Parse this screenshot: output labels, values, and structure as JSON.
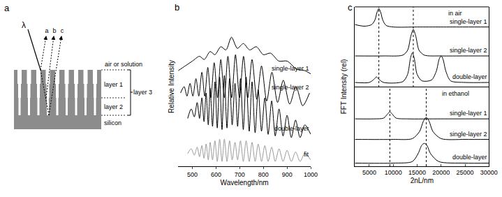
{
  "diagram": {
    "label": "a",
    "incident": "λ",
    "beams": [
      "a",
      "b",
      "c"
    ],
    "medium": "air or solution",
    "layers": [
      "layer 1",
      "layer 2"
    ],
    "total_layer": "layer 3",
    "substrate": "silicon"
  },
  "chart_data": [
    {
      "type": "line",
      "label": "b",
      "xlabel": "Wavelength/nm",
      "ylabel": "Relative Intensity",
      "xlim": [
        440,
        1000
      ],
      "xticks": [
        500,
        600,
        700,
        800,
        900,
        1000
      ],
      "ylim": [
        0,
        10
      ],
      "tick_labels": "x",
      "grid": false,
      "line_style": "solid",
      "series": [
        {
          "name": "single-layer 1",
          "color": "#000000",
          "x": [
            440,
            470,
            500,
            530,
            550,
            575,
            595,
            620,
            642,
            665,
            690,
            715,
            742,
            770,
            800,
            830,
            865,
            900,
            940,
            975,
            1000
          ],
          "values": [
            6.0,
            6.3,
            6.6,
            6.9,
            6.7,
            7.2,
            7.0,
            7.5,
            7.3,
            8.1,
            7.4,
            7.7,
            7.3,
            7.5,
            7.0,
            7.1,
            6.6,
            6.6,
            6.1,
            6.0,
            5.8
          ]
        },
        {
          "name": "single-layer 2",
          "color": "#000000",
          "x": [
            450,
            465,
            477,
            490,
            502,
            515,
            527,
            540,
            552,
            565,
            578,
            592,
            606,
            620,
            635,
            650,
            666,
            682,
            699,
            716,
            734,
            752,
            772,
            792,
            814,
            836,
            860,
            884,
            911,
            938,
            966,
            995
          ],
          "values": [
            4.6,
            5.0,
            4.4,
            5.2,
            4.4,
            5.5,
            4.4,
            5.9,
            4.4,
            6.2,
            4.3,
            6.5,
            4.3,
            6.7,
            4.3,
            6.9,
            4.3,
            7.0,
            4.3,
            6.9,
            4.3,
            6.7,
            4.2,
            6.3,
            4.1,
            5.9,
            4.0,
            5.4,
            3.9,
            5.0,
            3.8,
            4.6
          ]
        },
        {
          "name": "double-layer",
          "color": "#000000",
          "x": [
            480,
            495,
            508,
            520,
            530,
            540,
            549,
            558,
            567,
            575,
            585,
            595,
            605,
            615,
            625,
            635,
            646,
            657,
            668,
            680,
            691,
            703,
            715,
            727,
            740,
            752,
            765,
            778,
            792,
            806,
            820,
            835,
            850,
            866,
            883,
            900,
            918,
            936,
            955,
            975,
            1000
          ],
          "values": [
            3.0,
            3.6,
            3.1,
            4.0,
            3.0,
            4.3,
            2.8,
            4.6,
            2.6,
            4.9,
            2.5,
            5.3,
            2.4,
            5.6,
            2.3,
            5.7,
            2.4,
            5.5,
            2.6,
            5.2,
            2.5,
            5.5,
            2.3,
            5.6,
            2.2,
            5.3,
            2.1,
            4.8,
            2.2,
            4.3,
            2.0,
            4.1,
            1.9,
            3.6,
            1.9,
            3.2,
            1.8,
            2.9,
            1.8,
            2.6,
            2.0
          ]
        },
        {
          "name": "fit",
          "color": "#999999",
          "x": [
            480,
            495,
            508,
            520,
            530,
            540,
            549,
            558,
            567,
            575,
            585,
            595,
            605,
            615,
            625,
            635,
            646,
            657,
            668,
            680,
            691,
            703,
            715,
            727,
            740,
            752,
            765,
            778,
            792,
            806,
            820,
            835,
            850,
            866,
            883,
            900,
            918,
            936,
            955,
            975,
            1000
          ],
          "values": [
            0.8,
            1.1,
            0.7,
            1.2,
            0.6,
            1.3,
            0.5,
            1.4,
            0.4,
            1.5,
            0.4,
            1.6,
            0.3,
            1.7,
            0.3,
            1.7,
            0.3,
            1.6,
            0.4,
            1.5,
            0.4,
            1.6,
            0.3,
            1.6,
            0.3,
            1.5,
            0.3,
            1.4,
            0.3,
            1.3,
            0.3,
            1.2,
            0.3,
            1.1,
            0.3,
            1.0,
            0.3,
            0.9,
            0.3,
            0.8,
            0.4
          ]
        }
      ]
    },
    {
      "type": "line",
      "label": "c",
      "xlabel": "2nL/nm",
      "ylabel": "FFT Intensity (rel)",
      "xlim": [
        2000,
        30000
      ],
      "xticks": [
        5000,
        10000,
        15000,
        20000,
        25000,
        30000
      ],
      "ylim": [
        0,
        10
      ],
      "tick_labels": "x",
      "grid": false,
      "line_style": "solid",
      "subplots": [
        {
          "title": "in air",
          "vlines": [
            7000,
            14200
          ],
          "series": [
            {
              "name": "single-layer 1",
              "color": "#000000",
              "x": [
                2000,
                4000,
                5500,
                6200,
                6600,
                7000,
                7400,
                7800,
                8500,
                10000,
                15000,
                20000,
                25000,
                30000
              ],
              "values": [
                7.8,
                7.6,
                7.8,
                8.4,
                9.3,
                9.8,
                9.3,
                8.4,
                7.7,
                7.5,
                7.5,
                7.5,
                7.5,
                7.5
              ]
            },
            {
              "name": "single-layer 2",
              "color": "#000000",
              "x": [
                2000,
                8000,
                12000,
                13000,
                13700,
                14200,
                14700,
                15400,
                16500,
                20000,
                25000,
                30000
              ],
              "values": [
                3.9,
                3.9,
                4.0,
                4.6,
                6.4,
                7.2,
                6.4,
                4.6,
                4.0,
                3.9,
                3.9,
                3.9
              ]
            },
            {
              "name": "double-layer",
              "color": "#000000",
              "x": [
                2000,
                5000,
                6000,
                6500,
                7000,
                8000,
                12000,
                13000,
                13600,
                14000,
                14400,
                15000,
                16000,
                18000,
                19000,
                19600,
                20000,
                20400,
                21000,
                22000,
                25000,
                30000
              ],
              "values": [
                0.6,
                0.6,
                1.0,
                1.3,
                1.0,
                0.6,
                0.7,
                1.6,
                3.6,
                4.3,
                3.6,
                1.6,
                0.8,
                0.9,
                2.0,
                3.5,
                3.9,
                3.5,
                2.0,
                0.8,
                0.6,
                0.6
              ]
            }
          ]
        },
        {
          "title": "in ethanol",
          "vlines": [
            9300,
            16900
          ],
          "series": [
            {
              "name": "single-layer 1",
              "color": "#000000",
              "x": [
                2000,
                6000,
                8000,
                8800,
                9300,
                9800,
                10600,
                13000,
                20000,
                30000
              ],
              "values": [
                6.0,
                6.0,
                6.1,
                6.6,
                6.9,
                6.6,
                6.1,
                6.0,
                6.0,
                6.0
              ]
            },
            {
              "name": "single-layer 2",
              "color": "#000000",
              "x": [
                2000,
                10000,
                14000,
                15500,
                16300,
                16900,
                17500,
                18300,
                20000,
                25000,
                30000
              ],
              "values": [
                3.4,
                3.4,
                3.5,
                4.4,
                5.7,
                6.2,
                5.7,
                4.4,
                3.5,
                3.4,
                3.4
              ]
            },
            {
              "name": "double-layer",
              "color": "#000000",
              "x": [
                2000,
                10000,
                14000,
                15200,
                16000,
                16500,
                17000,
                17800,
                19500,
                25000,
                30000
              ],
              "values": [
                0.4,
                0.4,
                0.6,
                1.6,
                2.7,
                2.9,
                2.7,
                1.6,
                0.6,
                0.4,
                0.4
              ]
            }
          ]
        }
      ]
    }
  ]
}
